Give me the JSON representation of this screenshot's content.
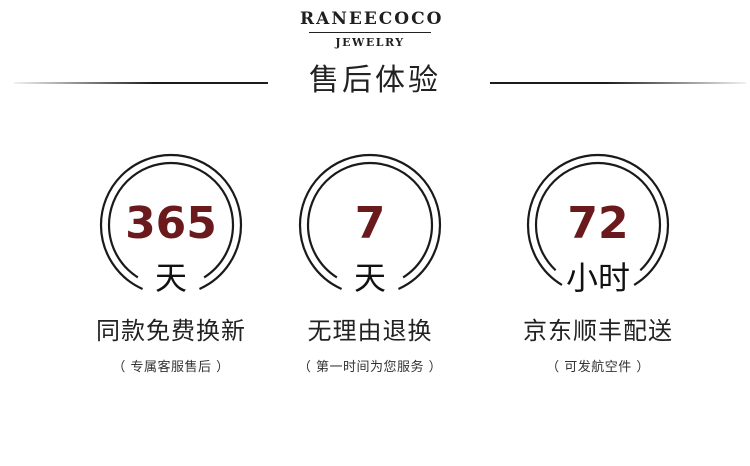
{
  "brand": {
    "name": "RANEECOCO",
    "subtitle": "JEWELRY"
  },
  "section_title": "售后体验",
  "features": [
    {
      "number": "365",
      "unit": "天",
      "title": "同款免费换新",
      "subtitle": "（ 专属客服售后 ）"
    },
    {
      "number": "7",
      "unit": "天",
      "title": "无理由退换",
      "subtitle": "（ 第一时间为您服务 ）"
    },
    {
      "number": "72",
      "unit": "小时",
      "title": "京东顺丰配送",
      "subtitle": "（ 可发航空件 ）"
    }
  ],
  "colors": {
    "number": "#6a1a1c",
    "text": "#222222",
    "ring": "#1a1a1a",
    "background": "#ffffff"
  }
}
